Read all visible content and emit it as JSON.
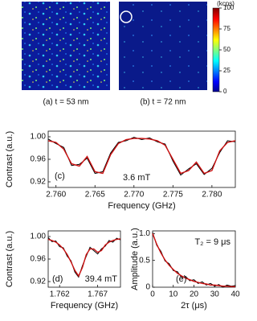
{
  "chart_data": [
    {
      "type": "colorbar",
      "title": "(kcps)",
      "ylim": [
        0,
        100
      ],
      "yticks": [
        0,
        25,
        50,
        75,
        100
      ],
      "captions": [
        "(a) t = 53 nm",
        "(b) t = 72 nm"
      ]
    },
    {
      "type": "line",
      "label": "(c)",
      "annotation": "3.6 mT",
      "xlabel": "Frequency (GHz)",
      "ylabel": "Contrast (a.u.)",
      "xlim": [
        2.759,
        2.783
      ],
      "xticks": [
        {
          "value": 2.76,
          "label": "2.760"
        },
        2.765,
        {
          "value": 2.77,
          "label": "2.770"
        },
        2.775,
        {
          "value": 2.78,
          "label": "2.780"
        }
      ],
      "ylim": [
        0.91,
        1.01
      ],
      "yticks": [
        0.92,
        0.96,
        {
          "value": 1.0,
          "label": "1.00"
        }
      ],
      "x": [
        2.759,
        2.76,
        2.761,
        2.762,
        2.763,
        2.764,
        2.765,
        2.766,
        2.767,
        2.768,
        2.769,
        2.77,
        2.771,
        2.772,
        2.773,
        2.774,
        2.775,
        2.776,
        2.777,
        2.778,
        2.779,
        2.78,
        2.781,
        2.782,
        2.783
      ],
      "series": [
        {
          "color": "#000000",
          "values": [
            0.996,
            0.988,
            0.981,
            0.949,
            0.951,
            0.962,
            0.935,
            0.938,
            0.971,
            0.99,
            0.993,
            0.999,
            0.995,
            0.998,
            0.991,
            0.987,
            0.957,
            0.932,
            0.943,
            0.952,
            0.933,
            0.944,
            0.972,
            0.993,
            0.991
          ]
        },
        {
          "color": "#cc1111",
          "values": [
            0.993,
            0.99,
            0.978,
            0.952,
            0.948,
            0.965,
            0.938,
            0.935,
            0.968,
            0.988,
            0.995,
            0.997,
            0.997,
            0.996,
            0.993,
            0.985,
            0.96,
            0.935,
            0.94,
            0.955,
            0.935,
            0.94,
            0.975,
            0.99,
            0.993
          ]
        }
      ]
    },
    {
      "type": "line",
      "label": "(d)",
      "annotation": "39.4 mT",
      "xlabel": "Frequency (GHz)",
      "ylabel": "Contrast (a.u.)",
      "xlim": [
        1.7605,
        1.77
      ],
      "xticks": [
        1.762,
        1.767
      ],
      "ylim": [
        0.91,
        1.01
      ],
      "yticks": [
        0.92,
        0.96,
        {
          "value": 1.0,
          "label": "1.00"
        }
      ],
      "x": [
        1.7605,
        1.761,
        1.7615,
        1.762,
        1.7625,
        1.763,
        1.7635,
        1.764,
        1.7645,
        1.765,
        1.7655,
        1.766,
        1.7665,
        1.767,
        1.7675,
        1.768,
        1.7685,
        1.769,
        1.7695,
        1.77
      ],
      "series": [
        {
          "color": "#000000",
          "values": [
            0.998,
            0.991,
            0.992,
            0.982,
            0.98,
            0.965,
            0.957,
            0.937,
            0.928,
            0.948,
            0.965,
            0.981,
            0.975,
            0.969,
            0.978,
            0.983,
            0.993,
            0.99,
            0.997,
            0.994
          ]
        },
        {
          "color": "#cc1111",
          "values": [
            0.995,
            0.993,
            0.99,
            0.985,
            0.978,
            0.968,
            0.955,
            0.94,
            0.93,
            0.945,
            0.968,
            0.978,
            0.978,
            0.972,
            0.975,
            0.985,
            0.99,
            0.993,
            0.995,
            0.996
          ]
        }
      ]
    },
    {
      "type": "line",
      "label": "(e)",
      "annotation": "T₂ = 9 μs",
      "xlabel": "2τ (μs)",
      "ylabel": "Amplitude (a.u.)",
      "xlim": [
        0,
        40
      ],
      "xticks": [
        0,
        10,
        20,
        30,
        40
      ],
      "ylim": [
        0,
        1.05
      ],
      "yticks": [
        0,
        0.5,
        {
          "value": 1.0,
          "label": "1.0"
        }
      ],
      "x": [
        0,
        2,
        4,
        6,
        8,
        10,
        12,
        14,
        16,
        18,
        20,
        22,
        24,
        26,
        28,
        30,
        32,
        34,
        36,
        38,
        40
      ],
      "series": [
        {
          "color": "#000000",
          "values": [
            1.02,
            0.78,
            0.67,
            0.49,
            0.44,
            0.31,
            0.29,
            0.18,
            0.2,
            0.12,
            0.14,
            0.07,
            0.1,
            0.04,
            0.07,
            0.02,
            0.05,
            0.0,
            0.04,
            0.02,
            0.03
          ]
        },
        {
          "color": "#cc1111",
          "values": [
            1.0,
            0.8,
            0.64,
            0.51,
            0.41,
            0.33,
            0.26,
            0.21,
            0.17,
            0.14,
            0.11,
            0.09,
            0.07,
            0.06,
            0.04,
            0.04,
            0.03,
            0.02,
            0.02,
            0.01,
            0.01
          ]
        }
      ]
    }
  ]
}
